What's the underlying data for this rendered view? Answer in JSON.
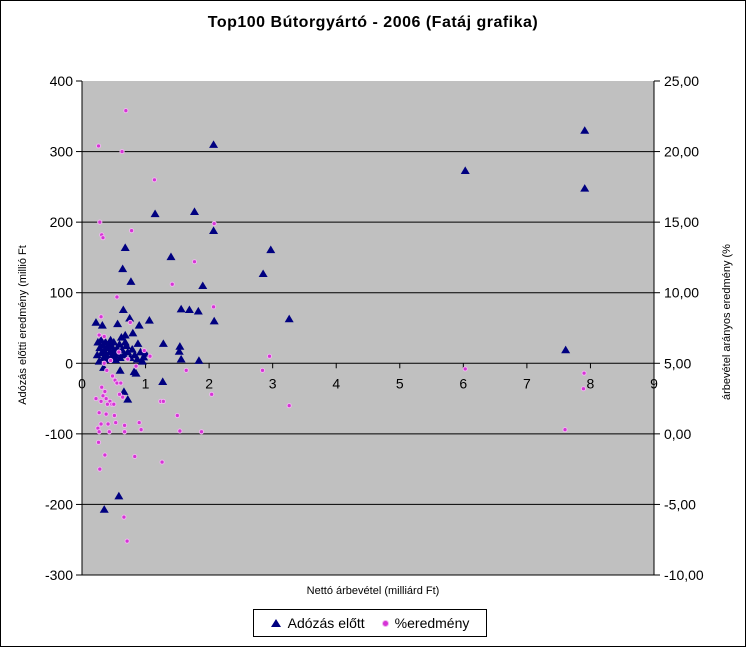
{
  "window": {
    "background": "#ffffff",
    "border_color": "#000000"
  },
  "legend": {
    "position": "bottom-center"
  },
  "chart_data": {
    "type": "scatter",
    "title": "Top100 Bútorgyártó - 2006 (Fatáj grafika)",
    "grid": true,
    "plot": {
      "background": "#c0c0c0",
      "gridline_color": "#000000"
    },
    "x_axis": {
      "title": "Nettó árbevétel (milliárd Ft)",
      "min": 0,
      "max": 9,
      "ticks": [
        0,
        1,
        2,
        3,
        4,
        5,
        6,
        7,
        8,
        9
      ]
    },
    "y_left": {
      "title": "Adózás előtti eredmény (millió Ft",
      "min": -300,
      "max": 400,
      "ticks": [
        400,
        300,
        200,
        100,
        0,
        -100,
        -200,
        -300
      ]
    },
    "y_right": {
      "title": "árbevétel arányos eredmény (%",
      "min": -10,
      "max": 25,
      "ticks": [
        {
          "v": 25,
          "label": "25,00"
        },
        {
          "v": 20,
          "label": "20,00"
        },
        {
          "v": 15,
          "label": "15,00"
        },
        {
          "v": 10,
          "label": "10,00"
        },
        {
          "v": 5,
          "label": "5,00"
        },
        {
          "v": 0,
          "label": "0,00"
        },
        {
          "v": -5,
          "label": "-5,00"
        },
        {
          "v": -10,
          "label": "-10,00"
        }
      ]
    },
    "series": [
      {
        "name": "Adózás előtt",
        "marker": "triangle",
        "color": "#000080",
        "axis": "left",
        "points": [
          [
            7.91,
            330
          ],
          [
            7.91,
            248
          ],
          [
            6.03,
            273
          ],
          [
            2.07,
            310
          ],
          [
            1.77,
            215
          ],
          [
            1.15,
            212
          ],
          [
            2.07,
            188
          ],
          [
            2.97,
            161
          ],
          [
            0.68,
            164
          ],
          [
            1.4,
            151
          ],
          [
            2.85,
            127
          ],
          [
            0.64,
            134
          ],
          [
            0.77,
            116
          ],
          [
            1.9,
            110
          ],
          [
            3.26,
            63
          ],
          [
            7.61,
            19
          ],
          [
            0.65,
            76
          ],
          [
            1.56,
            77
          ],
          [
            1.69,
            76
          ],
          [
            1.83,
            74
          ],
          [
            0.22,
            58
          ],
          [
            0.32,
            54
          ],
          [
            0.56,
            56
          ],
          [
            0.75,
            64
          ],
          [
            0.9,
            54
          ],
          [
            1.06,
            61
          ],
          [
            2.08,
            60
          ],
          [
            0.62,
            37
          ],
          [
            0.68,
            40
          ],
          [
            0.8,
            43
          ],
          [
            1.28,
            28
          ],
          [
            1.54,
            24
          ],
          [
            1.53,
            17
          ],
          [
            1.56,
            6
          ],
          [
            1.84,
            4
          ],
          [
            1.27,
            -26
          ],
          [
            0.85,
            -14
          ],
          [
            0.66,
            -40
          ],
          [
            0.72,
            -51
          ],
          [
            0.58,
            -188
          ],
          [
            0.35,
            -207
          ],
          [
            0.24,
            12
          ],
          [
            0.25,
            30
          ],
          [
            0.27,
            3
          ],
          [
            0.28,
            22
          ],
          [
            0.3,
            33
          ],
          [
            0.31,
            15
          ],
          [
            0.33,
            26
          ],
          [
            0.34,
            8
          ],
          [
            0.34,
            -6
          ],
          [
            0.35,
            18
          ],
          [
            0.37,
            30
          ],
          [
            0.38,
            12
          ],
          [
            0.4,
            22
          ],
          [
            0.41,
            5
          ],
          [
            0.43,
            27
          ],
          [
            0.44,
            16
          ],
          [
            0.45,
            33
          ],
          [
            0.46,
            9
          ],
          [
            0.47,
            24
          ],
          [
            0.49,
            18
          ],
          [
            0.5,
            30
          ],
          [
            0.52,
            12
          ],
          [
            0.53,
            5
          ],
          [
            0.55,
            21
          ],
          [
            0.57,
            15
          ],
          [
            0.59,
            27
          ],
          [
            0.6,
            8
          ],
          [
            0.6,
            -10
          ],
          [
            0.63,
            19
          ],
          [
            0.66,
            12
          ],
          [
            0.68,
            30
          ],
          [
            0.7,
            25
          ],
          [
            0.72,
            16
          ],
          [
            0.76,
            8
          ],
          [
            0.79,
            20
          ],
          [
            0.82,
            -12
          ],
          [
            0.83,
            12
          ],
          [
            0.87,
            6
          ],
          [
            0.88,
            28
          ],
          [
            0.92,
            16
          ],
          [
            0.95,
            3
          ],
          [
            0.97,
            9
          ],
          [
            1.0,
            14
          ]
        ]
      },
      {
        "name": "%eredmény",
        "marker": "dot",
        "color": "#d633d6",
        "halo_color": "#f0b5f0",
        "axis": "right",
        "points": [
          [
            0.69,
            22.9
          ],
          [
            0.26,
            20.4
          ],
          [
            0.63,
            20.0
          ],
          [
            1.14,
            18.0
          ],
          [
            0.28,
            15.0
          ],
          [
            2.08,
            14.9
          ],
          [
            0.78,
            14.4
          ],
          [
            0.31,
            14.1
          ],
          [
            0.33,
            13.9
          ],
          [
            1.77,
            12.2
          ],
          [
            1.42,
            10.6
          ],
          [
            0.55,
            9.7
          ],
          [
            2.07,
            9.0
          ],
          [
            0.3,
            8.3
          ],
          [
            0.76,
            7.9
          ],
          [
            0.27,
            7.0
          ],
          [
            0.35,
            6.9
          ],
          [
            0.98,
            5.9
          ],
          [
            0.58,
            5.8
          ],
          [
            1.07,
            5.5
          ],
          [
            2.95,
            5.5
          ],
          [
            0.72,
            5.3
          ],
          [
            0.45,
            5.2
          ],
          [
            0.35,
            5.0
          ],
          [
            0.85,
            4.8
          ],
          [
            6.03,
            4.6
          ],
          [
            0.39,
            4.5
          ],
          [
            1.64,
            4.5
          ],
          [
            2.84,
            4.5
          ],
          [
            7.9,
            4.3
          ],
          [
            0.48,
            4.1
          ],
          [
            0.52,
            3.8
          ],
          [
            0.55,
            3.6
          ],
          [
            0.61,
            3.6
          ],
          [
            0.31,
            3.3
          ],
          [
            7.89,
            3.2
          ],
          [
            0.36,
            3.0
          ],
          [
            2.04,
            2.8
          ],
          [
            0.59,
            2.8
          ],
          [
            0.33,
            2.7
          ],
          [
            0.64,
            2.6
          ],
          [
            0.22,
            2.5
          ],
          [
            0.38,
            2.5
          ],
          [
            0.3,
            2.3
          ],
          [
            0.44,
            2.3
          ],
          [
            1.24,
            2.3
          ],
          [
            1.28,
            2.3
          ],
          [
            0.4,
            2.1
          ],
          [
            0.47,
            2.1
          ],
          [
            0.5,
            2.1
          ],
          [
            3.26,
            2.0
          ],
          [
            0.27,
            1.5
          ],
          [
            0.38,
            1.4
          ],
          [
            0.51,
            1.3
          ],
          [
            1.5,
            1.3
          ],
          [
            0.53,
            0.8
          ],
          [
            0.9,
            0.8
          ],
          [
            0.3,
            0.7
          ],
          [
            0.41,
            0.7
          ],
          [
            0.67,
            0.6
          ],
          [
            0.25,
            0.4
          ],
          [
            7.6,
            0.3
          ],
          [
            0.93,
            0.3
          ],
          [
            0.27,
            0.15
          ],
          [
            0.43,
            0.15
          ],
          [
            0.67,
            0.15
          ],
          [
            1.54,
            0.2
          ],
          [
            1.88,
            0.15
          ],
          [
            0.26,
            -0.6
          ],
          [
            0.36,
            -1.5
          ],
          [
            0.83,
            -1.6
          ],
          [
            1.26,
            -2.0
          ],
          [
            0.28,
            -2.5
          ],
          [
            0.66,
            -5.9
          ],
          [
            0.71,
            -7.6
          ]
        ]
      }
    ]
  }
}
